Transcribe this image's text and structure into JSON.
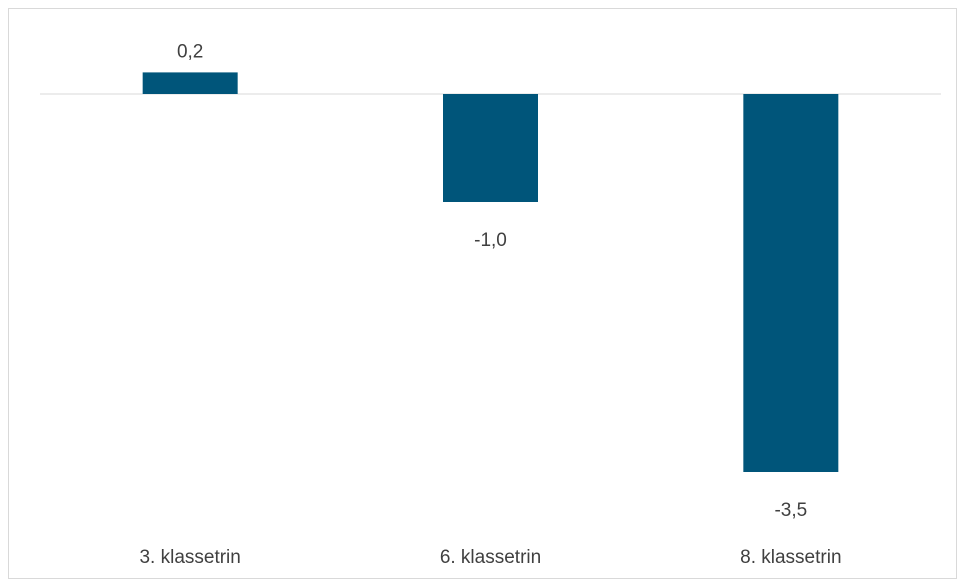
{
  "chart_data": {
    "type": "bar",
    "categories": [
      "3. klassetrin",
      "6. klassetrin",
      "8. klassetrin"
    ],
    "values": [
      0.2,
      -1.0,
      -3.5
    ],
    "data_labels": [
      "0,2",
      "-1,0",
      "-3,5"
    ],
    "title": "",
    "xlabel": "",
    "ylabel": "",
    "ylim": [
      -3.5,
      0.2
    ],
    "grid": false,
    "legend": "none",
    "bar_color": "#00557a",
    "axis_color": "#d9d9d9"
  }
}
